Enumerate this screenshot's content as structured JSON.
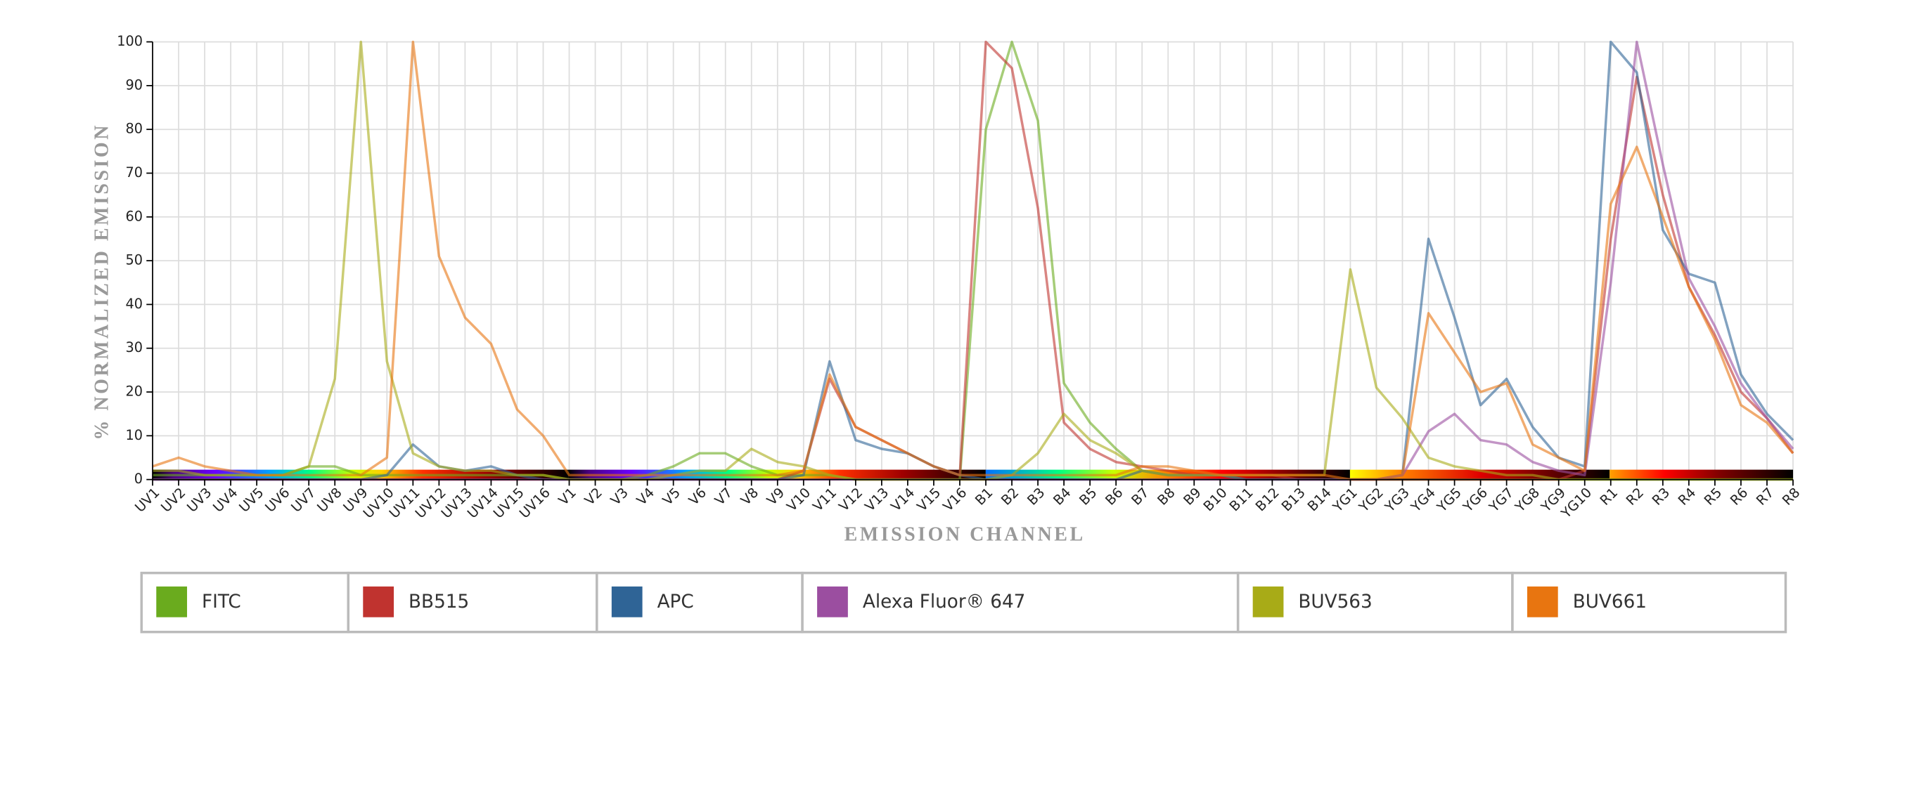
{
  "chart_data": {
    "type": "line",
    "y_label": "% NORMALIZED EMISSION",
    "x_label": "EMISSION CHANNEL",
    "categories": [
      "UV1",
      "UV2",
      "UV3",
      "UV4",
      "UV5",
      "UV6",
      "UV7",
      "UV8",
      "UV9",
      "UV10",
      "UV11",
      "UV12",
      "UV13",
      "UV14",
      "UV15",
      "UV16",
      "V1",
      "V2",
      "V3",
      "V4",
      "V5",
      "V6",
      "V7",
      "V8",
      "V9",
      "V10",
      "V11",
      "V12",
      "V13",
      "V14",
      "V15",
      "V16",
      "B1",
      "B2",
      "B3",
      "B4",
      "B5",
      "B6",
      "B7",
      "B8",
      "B9",
      "B10",
      "B11",
      "B12",
      "B13",
      "B14",
      "YG1",
      "YG2",
      "YG3",
      "YG4",
      "YG5",
      "YG6",
      "YG7",
      "YG8",
      "YG9",
      "YG10",
      "R1",
      "R2",
      "R3",
      "R4",
      "R5",
      "R6",
      "R7",
      "R8"
    ],
    "ylim": [
      0,
      100
    ],
    "yticks": [
      0,
      10,
      20,
      30,
      40,
      50,
      60,
      70,
      80,
      90,
      100
    ],
    "grid": true,
    "series": [
      {
        "name": "FITC",
        "color": "#6aab1e",
        "values": [
          1,
          1,
          1,
          1,
          1,
          1,
          3,
          3,
          1,
          1,
          1,
          1,
          1,
          1,
          1,
          1,
          0,
          0,
          0,
          1,
          3,
          6,
          6,
          3,
          1,
          1,
          1,
          0,
          0,
          0,
          0,
          0,
          80,
          100,
          82,
          22,
          13,
          7,
          2,
          1,
          1,
          1,
          0,
          0,
          0,
          0,
          0,
          0,
          0,
          0,
          0,
          0,
          0,
          0,
          0,
          0,
          0,
          0,
          0,
          0,
          0,
          0,
          0,
          0
        ]
      },
      {
        "name": "BB515",
        "color": "#c0332f",
        "values": [
          0,
          0,
          0,
          0,
          0,
          0,
          0,
          0,
          0,
          0,
          0,
          0,
          0,
          0,
          0,
          0,
          0,
          0,
          0,
          0,
          0,
          0,
          0,
          0,
          0,
          2,
          23,
          12,
          9,
          6,
          3,
          1,
          100,
          94,
          62,
          13,
          7,
          4,
          3,
          2,
          1,
          1,
          1,
          1,
          0,
          0,
          0,
          0,
          0,
          0,
          0,
          0,
          0,
          0,
          0,
          2,
          55,
          92,
          65,
          44,
          33,
          20,
          14,
          6
        ]
      },
      {
        "name": "APC",
        "color": "#2f6496",
        "values": [
          0,
          0,
          0,
          0,
          0,
          0,
          0,
          0,
          0,
          1,
          8,
          3,
          2,
          3,
          1,
          0,
          0,
          0,
          0,
          0,
          0,
          0,
          0,
          0,
          0,
          1,
          27,
          9,
          7,
          6,
          3,
          1,
          0,
          0,
          0,
          0,
          0,
          0,
          2,
          1,
          1,
          1,
          0,
          0,
          0,
          0,
          0,
          0,
          1,
          55,
          37,
          17,
          23,
          12,
          5,
          3,
          100,
          93,
          57,
          47,
          45,
          24,
          15,
          9
        ]
      },
      {
        "name": "Alexa Fluor® 647",
        "color": "#9b4ea0",
        "values": [
          0,
          0,
          0,
          0,
          0,
          0,
          0,
          0,
          0,
          0,
          0,
          0,
          0,
          0,
          0,
          0,
          0,
          0,
          0,
          0,
          0,
          0,
          0,
          0,
          0,
          0,
          0,
          0,
          0,
          0,
          0,
          0,
          0,
          0,
          0,
          0,
          0,
          0,
          0,
          0,
          0,
          0,
          0,
          0,
          0,
          0,
          0,
          0,
          1,
          11,
          15,
          9,
          8,
          4,
          2,
          1,
          45,
          100,
          72,
          46,
          35,
          22,
          14,
          7
        ]
      },
      {
        "name": "BUV563",
        "color": "#a8ab17",
        "values": [
          2,
          2,
          1,
          1,
          1,
          1,
          3,
          23,
          100,
          27,
          6,
          3,
          2,
          2,
          1,
          1,
          0,
          0,
          0,
          0,
          1,
          2,
          2,
          7,
          4,
          3,
          1,
          0,
          0,
          0,
          0,
          0,
          0,
          1,
          6,
          15,
          9,
          6,
          2,
          1,
          1,
          1,
          1,
          1,
          1,
          1,
          48,
          21,
          14,
          5,
          3,
          2,
          1,
          1,
          0,
          0,
          0,
          0,
          0,
          0,
          0,
          0,
          0,
          0
        ]
      },
      {
        "name": "BUV661",
        "color": "#e87510",
        "values": [
          3,
          5,
          3,
          2,
          1,
          1,
          1,
          1,
          1,
          5,
          100,
          51,
          37,
          31,
          16,
          10,
          1,
          1,
          1,
          1,
          1,
          1,
          1,
          1,
          1,
          2,
          24,
          12,
          9,
          6,
          3,
          1,
          1,
          1,
          1,
          1,
          1,
          1,
          3,
          3,
          2,
          1,
          1,
          1,
          1,
          1,
          0,
          0,
          1,
          38,
          29,
          20,
          22,
          8,
          5,
          2,
          63,
          76,
          60,
          44,
          32,
          17,
          13,
          6
        ]
      }
    ]
  }
}
